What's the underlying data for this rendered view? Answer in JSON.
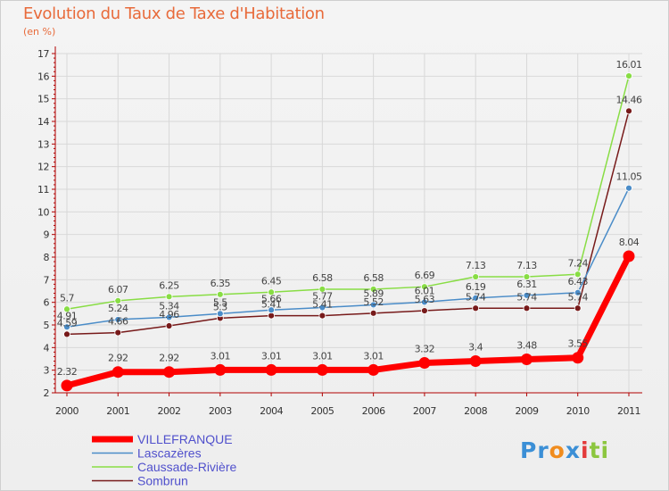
{
  "chart_data": {
    "type": "line",
    "title": "Evolution du Taux de Taxe d'Habitation",
    "ylabel": "(en %)",
    "xlabel": "",
    "ylim": [
      2,
      17
    ],
    "yticks": [
      "2",
      "3",
      "4",
      "5",
      "6",
      "7",
      "8",
      "9",
      "10",
      "11",
      "12",
      "13",
      "14",
      "15",
      "16",
      "17"
    ],
    "categories": [
      "2000",
      "2001",
      "2002",
      "2003",
      "2004",
      "2005",
      "2006",
      "2007",
      "2008",
      "2009",
      "2010",
      "2011"
    ],
    "series": [
      {
        "name": "VILLEFRANQUE",
        "color": "#ff0000",
        "values": [
          2.32,
          2.92,
          2.92,
          3.01,
          3.01,
          3.01,
          3.01,
          3.32,
          3.4,
          3.48,
          3.55,
          8.04
        ],
        "labels": [
          "2.32",
          "2.92",
          "2.92",
          "3.01",
          "3.01",
          "3.01",
          "3.01",
          "3.32",
          "3.4",
          "3.48",
          "3.55",
          "8.04"
        ]
      },
      {
        "name": "Lascazères",
        "color": "#4a8cc8",
        "values": [
          4.91,
          5.24,
          5.34,
          5.5,
          5.66,
          5.77,
          5.89,
          6.01,
          6.19,
          6.31,
          6.43,
          11.05
        ],
        "labels": [
          "4.91",
          "5.24",
          "5.34",
          "5.5",
          "5.66",
          "5.77",
          "5.89",
          "6.01",
          "6.19",
          "6.31",
          "6.43",
          "11.05"
        ]
      },
      {
        "name": "Caussade-Rivière",
        "color": "#88dd44",
        "values": [
          5.7,
          6.07,
          6.25,
          6.35,
          6.45,
          6.58,
          6.58,
          6.69,
          7.13,
          7.13,
          7.24,
          16.01
        ],
        "labels": [
          "5.7",
          "6.07",
          "6.25",
          "6.35",
          "6.45",
          "6.58",
          "6.58",
          "6.69",
          "7.13",
          "7.13",
          "7.24",
          "16.01"
        ]
      },
      {
        "name": "Sombrun",
        "color": "#771a1a",
        "values": [
          4.59,
          4.66,
          4.96,
          5.3,
          5.41,
          5.41,
          5.52,
          5.63,
          5.74,
          5.74,
          5.74,
          14.46
        ],
        "labels": [
          "4.59",
          "4.66",
          "4.96",
          "5.3",
          "5.41",
          "5.41",
          "5.52",
          "5.63",
          "5.74",
          "5.74",
          "5.74",
          "14.46"
        ]
      }
    ],
    "legend_position": "bottom-left"
  },
  "brand": {
    "parts": [
      "Pr",
      "o",
      "x",
      "i",
      "ti"
    ],
    "colors": [
      "#3b8fd6",
      "#f08c1e",
      "#3b8fd6",
      "#e33b3b",
      "#8cc63f"
    ]
  }
}
